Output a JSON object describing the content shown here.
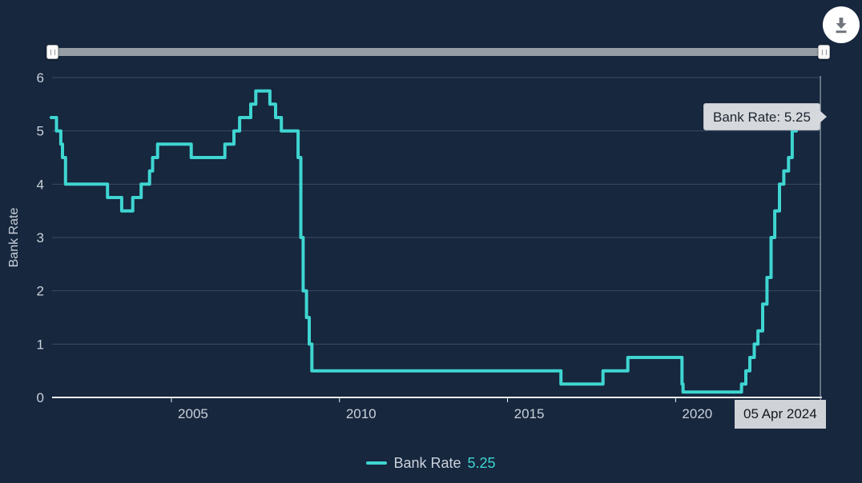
{
  "theme": {
    "background": "#16273e",
    "accent": "#3fd5d1",
    "grid_color": "#3a4c64",
    "axis_color": "#f2f4f6",
    "label_color": "#cad1d9",
    "tooltip_bg": "#d5d8dc",
    "tooltip_text": "#1c2430",
    "crosshair_color": "#b3bac2",
    "slider_track": "#979da5",
    "download_icon_color": "#71767e"
  },
  "icons": {
    "download": "download-icon",
    "slider_grips": "grip-icon"
  },
  "tooltip": {
    "text": "Bank Rate: 5.25"
  },
  "crosshair": {
    "date_label": "05 Apr 2024"
  },
  "legend": {
    "series_name": "Bank Rate",
    "value": "5.25"
  },
  "chart_data": {
    "type": "line",
    "step": "after",
    "title": "",
    "xlabel": "",
    "ylabel": "Bank Rate",
    "grid": true,
    "legend_position": "bottom-center",
    "y_axis": {
      "title": "Bank Rate",
      "range": [
        0,
        6
      ],
      "ticks": [
        {
          "value": 0,
          "label": "0"
        },
        {
          "value": 1,
          "label": "1"
        },
        {
          "value": 2,
          "label": "2"
        },
        {
          "value": 3,
          "label": "3"
        },
        {
          "value": 4,
          "label": "4"
        },
        {
          "value": 5,
          "label": "5"
        },
        {
          "value": 6,
          "label": "6"
        }
      ]
    },
    "x_axis": {
      "range": [
        2001.45,
        2024.33
      ],
      "ticks": [
        {
          "value": 2005,
          "label": "2005"
        },
        {
          "value": 2010,
          "label": "2010"
        },
        {
          "value": 2015,
          "label": "2015"
        },
        {
          "value": 2020,
          "label": "2020"
        }
      ]
    },
    "series": [
      {
        "name": "Bank Rate",
        "current_value": "5.25",
        "points": [
          {
            "date": "10 May 2001",
            "t": 2001.36,
            "rate": 5.25
          },
          {
            "date": "02 Aug 2001",
            "t": 2001.58,
            "rate": 5.0
          },
          {
            "date": "18 Sep 2001",
            "t": 2001.71,
            "rate": 4.75
          },
          {
            "date": "04 Oct 2001",
            "t": 2001.76,
            "rate": 4.5
          },
          {
            "date": "08 Nov 2001",
            "t": 2001.85,
            "rate": 4.0
          },
          {
            "date": "06 Feb 2003",
            "t": 2003.1,
            "rate": 3.75
          },
          {
            "date": "10 Jul 2003",
            "t": 2003.52,
            "rate": 3.5
          },
          {
            "date": "06 Nov 2003",
            "t": 2003.85,
            "rate": 3.75
          },
          {
            "date": "05 Feb 2004",
            "t": 2004.1,
            "rate": 4.0
          },
          {
            "date": "06 May 2004",
            "t": 2004.35,
            "rate": 4.25
          },
          {
            "date": "10 Jun 2004",
            "t": 2004.44,
            "rate": 4.5
          },
          {
            "date": "05 Aug 2004",
            "t": 2004.59,
            "rate": 4.75
          },
          {
            "date": "04 Aug 2005",
            "t": 2005.59,
            "rate": 4.5
          },
          {
            "date": "03 Aug 2006",
            "t": 2006.59,
            "rate": 4.75
          },
          {
            "date": "09 Nov 2006",
            "t": 2006.86,
            "rate": 5.0
          },
          {
            "date": "11 Jan 2007",
            "t": 2007.03,
            "rate": 5.25
          },
          {
            "date": "10 May 2007",
            "t": 2007.36,
            "rate": 5.5
          },
          {
            "date": "05 Jul 2007",
            "t": 2007.51,
            "rate": 5.75
          },
          {
            "date": "06 Dec 2007",
            "t": 2007.93,
            "rate": 5.5
          },
          {
            "date": "07 Feb 2008",
            "t": 2008.1,
            "rate": 5.25
          },
          {
            "date": "10 Apr 2008",
            "t": 2008.27,
            "rate": 5.0
          },
          {
            "date": "08 Oct 2008",
            "t": 2008.77,
            "rate": 4.5
          },
          {
            "date": "06 Nov 2008",
            "t": 2008.85,
            "rate": 3.0
          },
          {
            "date": "04 Dec 2008",
            "t": 2008.92,
            "rate": 2.0
          },
          {
            "date": "08 Jan 2009",
            "t": 2009.02,
            "rate": 1.5
          },
          {
            "date": "05 Feb 2009",
            "t": 2009.1,
            "rate": 1.0
          },
          {
            "date": "05 Mar 2009",
            "t": 2009.18,
            "rate": 0.5
          },
          {
            "date": "04 Aug 2016",
            "t": 2016.59,
            "rate": 0.25
          },
          {
            "date": "02 Nov 2017",
            "t": 2017.84,
            "rate": 0.5
          },
          {
            "date": "02 Aug 2018",
            "t": 2018.58,
            "rate": 0.75
          },
          {
            "date": "11 Mar 2020",
            "t": 2020.19,
            "rate": 0.25
          },
          {
            "date": "19 Mar 2020",
            "t": 2020.22,
            "rate": 0.1
          },
          {
            "date": "16 Dec 2021",
            "t": 2021.96,
            "rate": 0.25
          },
          {
            "date": "03 Feb 2022",
            "t": 2022.09,
            "rate": 0.5
          },
          {
            "date": "17 Mar 2022",
            "t": 2022.21,
            "rate": 0.75
          },
          {
            "date": "05 May 2022",
            "t": 2022.34,
            "rate": 1.0
          },
          {
            "date": "16 Jun 2022",
            "t": 2022.45,
            "rate": 1.25
          },
          {
            "date": "04 Aug 2022",
            "t": 2022.59,
            "rate": 1.75
          },
          {
            "date": "22 Sep 2022",
            "t": 2022.72,
            "rate": 2.25
          },
          {
            "date": "03 Nov 2022",
            "t": 2022.84,
            "rate": 3.0
          },
          {
            "date": "15 Dec 2022",
            "t": 2022.95,
            "rate": 3.5
          },
          {
            "date": "02 Feb 2023",
            "t": 2023.09,
            "rate": 4.0
          },
          {
            "date": "23 Mar 2023",
            "t": 2023.22,
            "rate": 4.25
          },
          {
            "date": "11 May 2023",
            "t": 2023.36,
            "rate": 4.5
          },
          {
            "date": "22 Jun 2023",
            "t": 2023.47,
            "rate": 5.0
          },
          {
            "date": "03 Aug 2023",
            "t": 2023.59,
            "rate": 5.25
          },
          {
            "date": "05 Apr 2024",
            "t": 2024.26,
            "rate": 5.25
          }
        ]
      }
    ]
  }
}
